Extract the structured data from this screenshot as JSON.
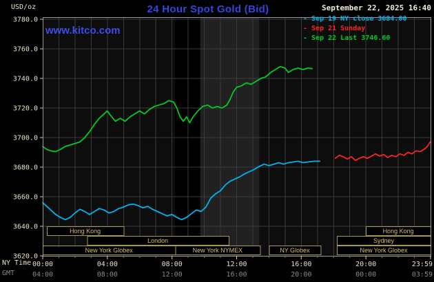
{
  "header": {
    "units_label": "USD/oz",
    "title": "24 Hour Spot Gold (Bid)",
    "datetime": "September 22, 2025 16:40",
    "watermark": "www.kitco.com"
  },
  "legend": [
    {
      "label": "Sep 19 NY close 3684.00",
      "color": "#00b4f0"
    },
    {
      "label": "Sep 21 Sunday",
      "color": "#ff2222"
    },
    {
      "label": "Sep 22 Last 3746.60",
      "color": "#00cc22"
    }
  ],
  "axes": {
    "ny_label": "NY Time",
    "gmt_label": "GMT",
    "x_tick_hours": [
      0,
      4,
      8,
      12,
      16,
      20,
      24
    ],
    "x_ticks_ny": [
      "00:00",
      "04:00",
      "08:00",
      "12:00",
      "16:00",
      "20:00",
      "23:59"
    ],
    "x_ticks_gmt": [
      "04:00",
      "08:00",
      "12:00",
      "16:00",
      "20:00",
      "00:00",
      "03:59"
    ],
    "y_ticks": [
      3780,
      3760,
      3740,
      3720,
      3700,
      3680,
      3660,
      3640,
      3620
    ],
    "y_tick_labels": [
      "3780.0",
      "3760.0",
      "3740.0",
      "3720.0",
      "3700.0",
      "3680.0",
      "3660.0",
      "3640.0",
      "3620.0"
    ]
  },
  "plot": {
    "bands": [
      {
        "from": 8.2,
        "to": 9.75,
        "color": "#000000"
      },
      {
        "from": 9.75,
        "to": 13.4,
        "color": "#212121"
      }
    ]
  },
  "sessions": {
    "rows": [
      [
        {
          "label": "Hong Kong",
          "from": 0.25,
          "to": 5.0
        },
        {
          "label": "Hong Kong",
          "from": 20.0,
          "to": 24
        }
      ],
      [
        {
          "label": "London",
          "from": 2.75,
          "to": 11.5
        },
        {
          "label": "Sydney",
          "from": 18.2,
          "to": 24
        }
      ],
      [
        {
          "label": "New York Globex",
          "from": 0,
          "to": 8.2
        },
        {
          "label": "New York NYMEX",
          "from": 8.2,
          "to": 13.45
        },
        {
          "label": "NY Globex",
          "from": 14.0,
          "to": 17.2
        },
        {
          "label": "New York Globex",
          "from": 18.2,
          "to": 24
        }
      ]
    ]
  },
  "colors": {
    "title": "#3346dd",
    "watermark": "#3a4cf0",
    "axis_text": "#e9e2c8",
    "gmt_text": "#8a8a8a",
    "grid": "#3a3a3a",
    "frame": "#9a9a9a",
    "session": "#a8985a",
    "session_text": "#d6be72",
    "plot_bg": "#0d0d0d"
  },
  "chart_data": {
    "type": "line",
    "title": "24 Hour Spot Gold (Bid)",
    "xlabel": "NY Time / GMT (24 hours)",
    "ylabel": "USD/oz",
    "ylim": [
      3620,
      3780
    ],
    "x_hours_range": [
      0,
      24
    ],
    "grid": true,
    "legend_position": "top-right",
    "series": [
      {
        "id": "sep19",
        "name": "Sep 19 NY close",
        "last": 3684.0,
        "color": "#00b4f0",
        "points": [
          [
            0,
            3656
          ],
          [
            0.2,
            3654
          ],
          [
            0.5,
            3651
          ],
          [
            0.8,
            3648
          ],
          [
            1.1,
            3646
          ],
          [
            1.4,
            3644.5
          ],
          [
            1.7,
            3646
          ],
          [
            2.0,
            3649
          ],
          [
            2.3,
            3651.5
          ],
          [
            2.6,
            3650
          ],
          [
            2.9,
            3648
          ],
          [
            3.2,
            3650
          ],
          [
            3.5,
            3652
          ],
          [
            3.8,
            3651
          ],
          [
            4.1,
            3649
          ],
          [
            4.4,
            3650
          ],
          [
            4.7,
            3652
          ],
          [
            5.0,
            3653
          ],
          [
            5.3,
            3654.5
          ],
          [
            5.6,
            3655
          ],
          [
            5.9,
            3654
          ],
          [
            6.2,
            3652.5
          ],
          [
            6.5,
            3653.5
          ],
          [
            6.8,
            3651.5
          ],
          [
            7.1,
            3650
          ],
          [
            7.4,
            3648.5
          ],
          [
            7.7,
            3647
          ],
          [
            8.0,
            3648
          ],
          [
            8.3,
            3646
          ],
          [
            8.6,
            3644.5
          ],
          [
            8.9,
            3646
          ],
          [
            9.2,
            3648.5
          ],
          [
            9.5,
            3651
          ],
          [
            9.8,
            3650
          ],
          [
            10.1,
            3653
          ],
          [
            10.4,
            3659
          ],
          [
            10.7,
            3662
          ],
          [
            11.0,
            3664
          ],
          [
            11.3,
            3668
          ],
          [
            11.6,
            3670.5
          ],
          [
            11.9,
            3672
          ],
          [
            12.2,
            3673.5
          ],
          [
            12.5,
            3675.5
          ],
          [
            12.8,
            3677
          ],
          [
            13.1,
            3678.5
          ],
          [
            13.4,
            3680.5
          ],
          [
            13.7,
            3682
          ],
          [
            14.0,
            3681
          ],
          [
            14.3,
            3682
          ],
          [
            14.6,
            3683
          ],
          [
            14.9,
            3682
          ],
          [
            15.2,
            3683
          ],
          [
            15.5,
            3683.5
          ],
          [
            15.8,
            3684
          ],
          [
            16.1,
            3683
          ],
          [
            16.4,
            3683.5
          ],
          [
            16.8,
            3684
          ],
          [
            17.15,
            3684
          ]
        ]
      },
      {
        "id": "sep21",
        "name": "Sep 21 Sunday",
        "color": "#ff2222",
        "points": [
          [
            18.1,
            3686
          ],
          [
            18.35,
            3688
          ],
          [
            18.6,
            3687
          ],
          [
            18.85,
            3685.5
          ],
          [
            19.1,
            3687
          ],
          [
            19.35,
            3684.5
          ],
          [
            19.6,
            3686
          ],
          [
            19.85,
            3687
          ],
          [
            20.1,
            3686
          ],
          [
            20.35,
            3687.5
          ],
          [
            20.6,
            3689
          ],
          [
            20.85,
            3687.5
          ],
          [
            21.1,
            3688.5
          ],
          [
            21.35,
            3686.5
          ],
          [
            21.6,
            3688
          ],
          [
            21.85,
            3687
          ],
          [
            22.1,
            3689
          ],
          [
            22.35,
            3688
          ],
          [
            22.6,
            3690
          ],
          [
            22.85,
            3689
          ],
          [
            23.1,
            3691
          ],
          [
            23.35,
            3690.5
          ],
          [
            23.6,
            3692
          ],
          [
            23.8,
            3694
          ],
          [
            23.98,
            3697
          ]
        ]
      },
      {
        "id": "sep22",
        "name": "Sep 22",
        "last": 3746.6,
        "color": "#00cc22",
        "points": [
          [
            0,
            3694
          ],
          [
            0.25,
            3692
          ],
          [
            0.5,
            3691
          ],
          [
            0.8,
            3690.5
          ],
          [
            1.1,
            3692
          ],
          [
            1.4,
            3694
          ],
          [
            1.7,
            3695
          ],
          [
            2.0,
            3696
          ],
          [
            2.3,
            3697
          ],
          [
            2.6,
            3700
          ],
          [
            2.9,
            3704
          ],
          [
            3.2,
            3709
          ],
          [
            3.5,
            3713
          ],
          [
            3.8,
            3716
          ],
          [
            4.0,
            3718
          ],
          [
            4.2,
            3715
          ],
          [
            4.5,
            3711
          ],
          [
            4.8,
            3713
          ],
          [
            5.1,
            3711
          ],
          [
            5.4,
            3714
          ],
          [
            5.7,
            3716
          ],
          [
            6.0,
            3718
          ],
          [
            6.3,
            3716
          ],
          [
            6.6,
            3719
          ],
          [
            6.9,
            3721
          ],
          [
            7.2,
            3722
          ],
          [
            7.5,
            3723
          ],
          [
            7.8,
            3725
          ],
          [
            8.1,
            3724
          ],
          [
            8.3,
            3720
          ],
          [
            8.5,
            3714
          ],
          [
            8.7,
            3711
          ],
          [
            8.9,
            3714
          ],
          [
            9.1,
            3710
          ],
          [
            9.3,
            3714
          ],
          [
            9.6,
            3718
          ],
          [
            9.9,
            3721
          ],
          [
            10.2,
            3722
          ],
          [
            10.5,
            3720
          ],
          [
            10.8,
            3721
          ],
          [
            11.1,
            3720
          ],
          [
            11.4,
            3722
          ],
          [
            11.6,
            3726
          ],
          [
            11.8,
            3731
          ],
          [
            12.0,
            3734
          ],
          [
            12.3,
            3735
          ],
          [
            12.6,
            3737
          ],
          [
            12.9,
            3736
          ],
          [
            13.2,
            3738
          ],
          [
            13.5,
            3740
          ],
          [
            13.8,
            3741
          ],
          [
            14.1,
            3744
          ],
          [
            14.4,
            3746
          ],
          [
            14.7,
            3748
          ],
          [
            15.0,
            3747
          ],
          [
            15.2,
            3744
          ],
          [
            15.5,
            3746
          ],
          [
            15.8,
            3747
          ],
          [
            16.1,
            3746
          ],
          [
            16.4,
            3747
          ],
          [
            16.67,
            3746.6
          ]
        ]
      }
    ]
  }
}
